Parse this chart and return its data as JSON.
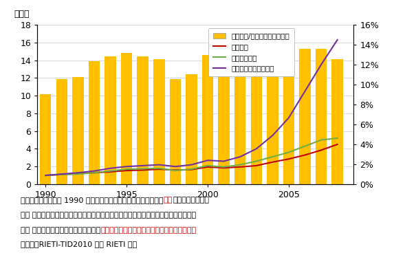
{
  "years": [
    1990,
    1991,
    1992,
    1993,
    1994,
    1995,
    1996,
    1997,
    1998,
    1999,
    2000,
    2001,
    2002,
    2003,
    2004,
    2005,
    2006,
    2007,
    2008
  ],
  "bar_values": [
    10.2,
    11.9,
    12.1,
    13.9,
    14.4,
    14.8,
    14.4,
    14.1,
    11.9,
    12.4,
    14.6,
    13.6,
    14.5,
    14.8,
    15.2,
    15.2,
    15.3,
    15.3,
    14.1
  ],
  "world_trade": [
    1.0,
    1.1,
    1.2,
    1.3,
    1.4,
    1.55,
    1.6,
    1.7,
    1.6,
    1.65,
    1.95,
    1.85,
    1.95,
    2.1,
    2.5,
    2.85,
    3.3,
    3.85,
    4.5
  ],
  "east_asia_trade": [
    1.0,
    1.1,
    1.15,
    1.3,
    1.5,
    1.7,
    1.75,
    1.8,
    1.55,
    1.7,
    2.1,
    1.95,
    2.2,
    2.6,
    3.1,
    3.6,
    4.3,
    5.0,
    5.2
  ],
  "china_import": [
    1.0,
    1.15,
    1.3,
    1.5,
    1.8,
    2.0,
    2.1,
    2.2,
    2.0,
    2.2,
    2.7,
    2.6,
    3.1,
    4.0,
    5.5,
    7.5,
    10.5,
    13.5,
    16.3
  ],
  "bar_color": "#FFC000",
  "world_trade_color": "#C00000",
  "east_asia_trade_color": "#70AD47",
  "china_import_color": "#7030A0",
  "ylabel_left": "（倍）",
  "ylim_left": [
    0,
    18
  ],
  "yticks_left": [
    0,
    2,
    4,
    6,
    8,
    10,
    12,
    14,
    16,
    18
  ],
  "ylim_right": [
    0,
    0.16
  ],
  "yticks_right": [
    0,
    0.02,
    0.04,
    0.06,
    0.08,
    0.1,
    0.12,
    0.14,
    0.16
  ],
  "ytick_labels_right": [
    "0%",
    "2%",
    "4%",
    "6%",
    "8%",
    "10%",
    "12%",
    "14%",
    "16%"
  ],
  "legend_labels": [
    "東アジア/世界貿易（右目盛）",
    "世界貿易",
    "東アジア貿易",
    "中国の対東アジア輸入"
  ],
  "note_color_china": "#C00000",
  "background_color": "#FFFFFF",
  "font_size_axis": 9,
  "font_size_note": 8,
  "note_segments_1": [
    {
      "text": "（注）貿易の伸びは 1990 年＝１として計算。東アジアは日本、",
      "color": "black"
    },
    {
      "text": "中国",
      "color": "#C00000"
    },
    {
      "text": "、香港、韓国、台",
      "color": "black"
    }
  ],
  "note_segments_2": [
    {
      "text": "　　 湾、シンガポール、インドネシア、マレーシア、フィリピン、タイ、ブルネイ、",
      "color": "black"
    }
  ],
  "note_segments_3": [
    {
      "text": "　　 カンボジア、ベトナム。ただし、",
      "color": "black"
    },
    {
      "text": "中国の対東アジア輸入では中国を除く東アジア",
      "color": "#C00000"
    }
  ],
  "note_line4": "（出所）RIETI-TID2010 より RIETI 作成"
}
